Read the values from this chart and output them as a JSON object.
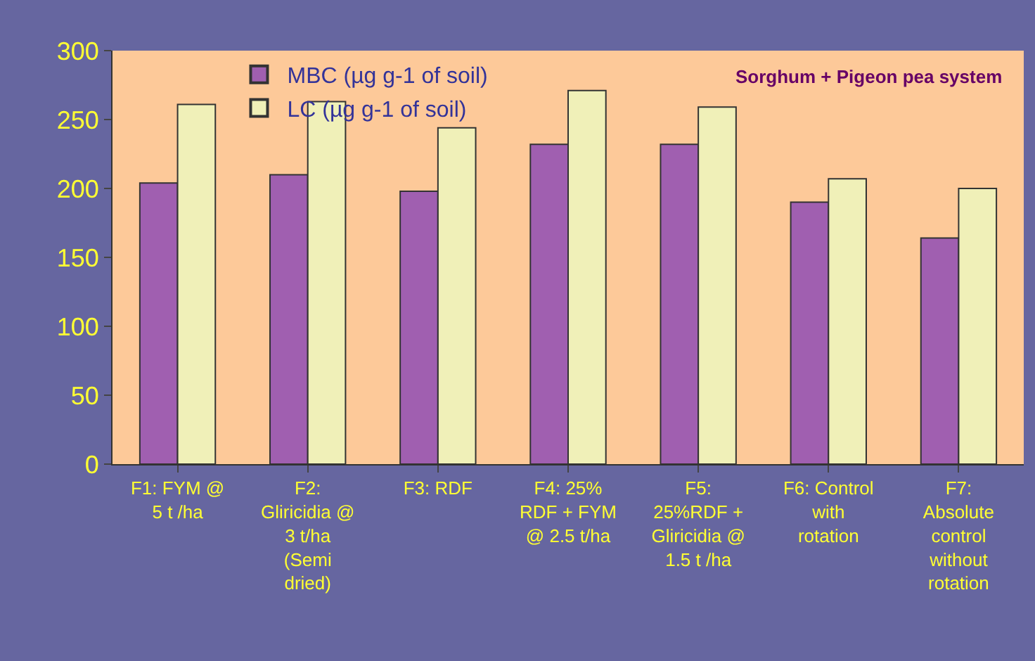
{
  "chart_data": {
    "type": "bar",
    "categories": [
      "F1: FYM @\n5 t /ha",
      "F2:\nGliricidia @\n3 t/ha\n(Semi\ndried)",
      "F3: RDF",
      "F4: 25%\nRDF + FYM\n@ 2.5 t/ha",
      "F5:\n25%RDF +\nGliricidia @\n1.5 t /ha",
      "F6: Control\nwith\nrotation",
      "F7:\nAbsolute\ncontrol\nwithout\nrotation"
    ],
    "series": [
      {
        "name": "MBC (µg g-1 of soil)",
        "color": "#a05fb0",
        "values": [
          204,
          210,
          198,
          232,
          232,
          190,
          164
        ]
      },
      {
        "name": "LC (µg g-1 of soil)",
        "color": "#f0f0b8",
        "values": [
          261,
          263,
          244,
          271,
          259,
          207,
          200
        ]
      }
    ],
    "ylim": [
      0,
      300
    ],
    "yticks": [
      0,
      50,
      100,
      150,
      200,
      250,
      300
    ],
    "grid": false,
    "legend": "top left",
    "annotations": [
      "Sorghum + Pigeon pea system"
    ]
  }
}
